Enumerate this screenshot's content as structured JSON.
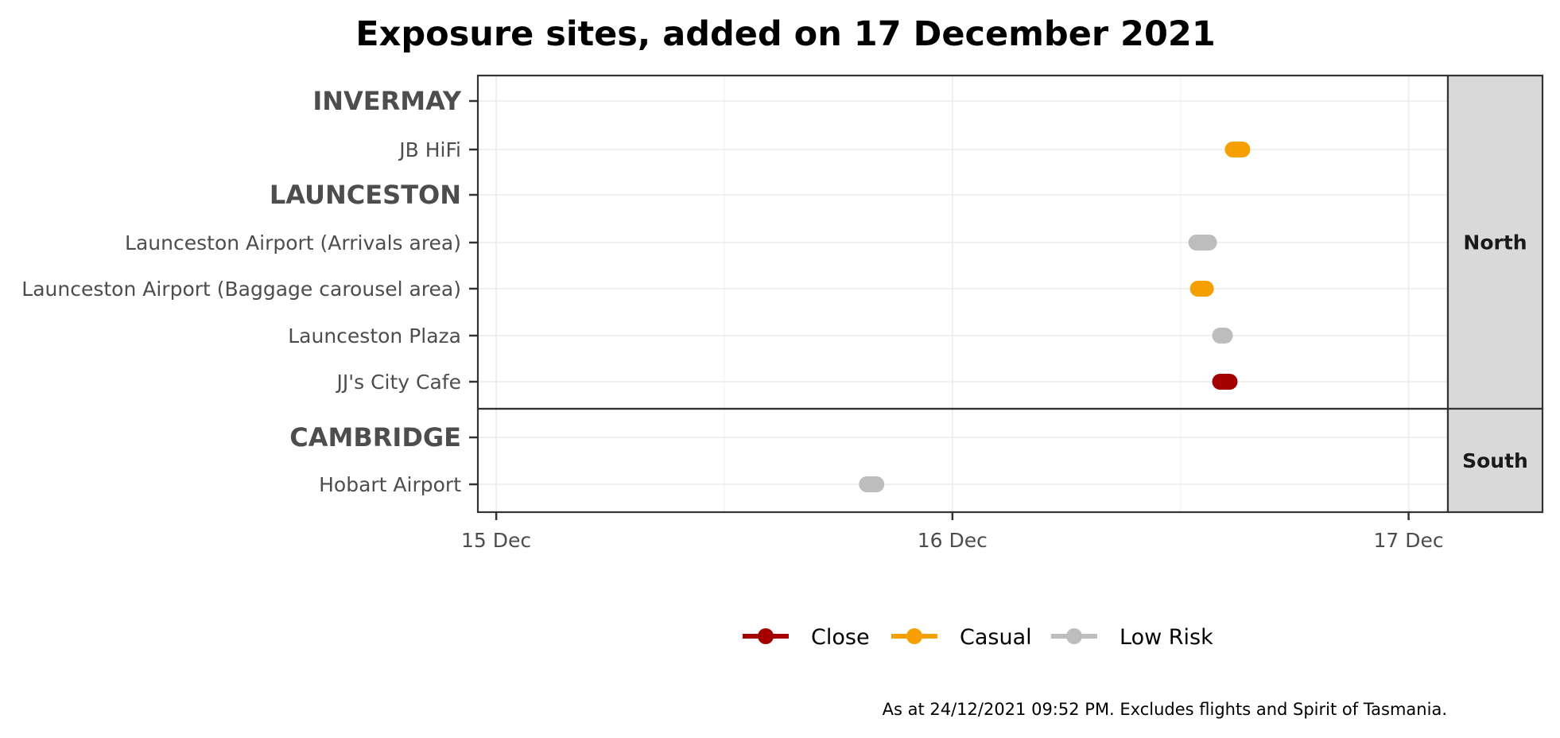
{
  "chart_data": {
    "type": "scatter",
    "title": "Exposure sites, added on 17 December 2021",
    "caption": "As at 24/12/2021 09:52 PM. Excludes flights and Spirit of Tasmania.",
    "x_axis": {
      "type": "datetime",
      "range": [
        "2021-12-14T23:02",
        "2021-12-17T02:04"
      ],
      "ticks": [
        {
          "value": "2021-12-15T00:00",
          "label": "15 Dec"
        },
        {
          "value": "2021-12-16T00:00",
          "label": "16 Dec"
        },
        {
          "value": "2021-12-17T00:00",
          "label": "17 Dec"
        }
      ],
      "minor_gridlines": [
        "2021-12-15T12:00",
        "2021-12-16T12:00"
      ]
    },
    "risk_levels": [
      {
        "name": "Close",
        "color": "#a50000"
      },
      {
        "name": "Casual",
        "color": "#f5a000"
      },
      {
        "name": "Low Risk",
        "color": "#bdbdbd"
      }
    ],
    "panels": [
      {
        "name": "North",
        "rows": [
          {
            "label": "INVERMAY",
            "heading": true
          },
          {
            "label": "JB HiFi",
            "risk": "Casual",
            "start": "2021-12-16T14:45",
            "end": "2021-12-16T15:15"
          },
          {
            "label": "LAUNCESTON",
            "heading": true
          },
          {
            "label": "Launceston Airport (Arrivals area)",
            "risk": "Low Risk",
            "start": "2021-12-16T12:50",
            "end": "2021-12-16T13:30"
          },
          {
            "label": "Launceston Airport (Baggage carousel area)",
            "risk": "Casual",
            "start": "2021-12-16T12:55",
            "end": "2021-12-16T13:20"
          },
          {
            "label": "Launceston Plaza",
            "risk": "Low Risk",
            "start": "2021-12-16T14:05",
            "end": "2021-12-16T14:20"
          },
          {
            "label": "JJ's City Cafe",
            "risk": "Close",
            "start": "2021-12-16T14:05",
            "end": "2021-12-16T14:35"
          }
        ]
      },
      {
        "name": "South",
        "rows": [
          {
            "label": "CAMBRIDGE",
            "heading": true
          },
          {
            "label": "Hobart Airport",
            "risk": "Low Risk",
            "start": "2021-12-15T19:30",
            "end": "2021-12-15T20:00"
          }
        ]
      }
    ],
    "legend": {
      "position": "bottom",
      "entries": [
        "Close",
        "Casual",
        "Low Risk"
      ]
    },
    "grid": true
  }
}
